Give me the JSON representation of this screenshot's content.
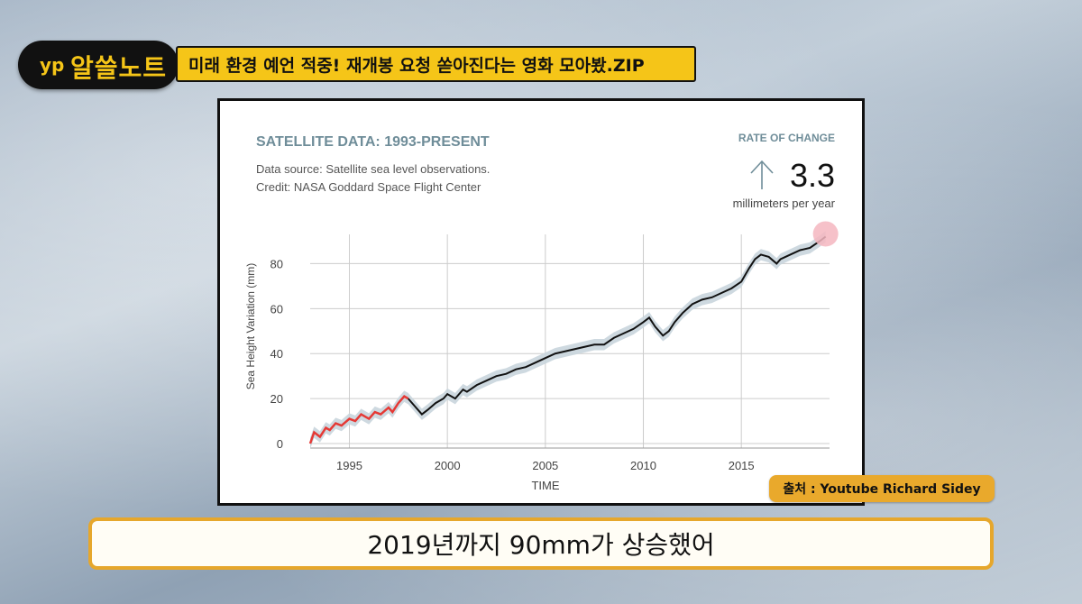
{
  "overlay": {
    "logo_badge": "yp",
    "logo_text": "알쓸노트",
    "headline": "미래 환경 예언 적중! 재개봉 요청 쏟아진다는 영화 모아봤.ZIP",
    "source_tag": "출처 : Youtube Richard Sidey",
    "subtitle": "2019년까지 90mm가 상승했어"
  },
  "chart_header": {
    "title": "SATELLITE DATA: 1993-PRESENT",
    "source_line1": "Data source: Satellite sea level observations.",
    "source_line2": "Credit: NASA Goddard Space Flight Center",
    "rate_label": "RATE OF CHANGE",
    "rate_value": "3.3",
    "rate_unit": "millimeters per year"
  },
  "colors": {
    "title": "#6f8d99",
    "line": "#111111",
    "early_line": "#e53935",
    "band": "#c9d5dd",
    "grid": "#cccccc",
    "marker": "#f4b6bf",
    "accent_yellow": "#f5c518",
    "accent_orange": "#e6a72c"
  },
  "chart_data": {
    "type": "line",
    "title": "SATELLITE DATA: 1993-PRESENT",
    "xlabel": "TIME",
    "ylabel": "Sea Height Variation (mm)",
    "xlim": [
      1993,
      2019.5
    ],
    "ylim": [
      -2,
      93
    ],
    "xticks": [
      1995,
      2000,
      2005,
      2010,
      2015
    ],
    "yticks": [
      0,
      20,
      40,
      60,
      80
    ],
    "grid": true,
    "highlight_until": 1998,
    "series": [
      {
        "points": [
          [
            1993.0,
            0
          ],
          [
            1993.2,
            5
          ],
          [
            1993.5,
            3
          ],
          [
            1993.8,
            7
          ],
          [
            1994.0,
            6
          ],
          [
            1994.3,
            9
          ],
          [
            1994.6,
            8
          ],
          [
            1995.0,
            11
          ],
          [
            1995.3,
            10
          ],
          [
            1995.6,
            13
          ],
          [
            1996.0,
            11
          ],
          [
            1996.3,
            14
          ],
          [
            1996.6,
            13
          ],
          [
            1997.0,
            16
          ],
          [
            1997.2,
            14
          ],
          [
            1997.5,
            18
          ],
          [
            1997.8,
            21
          ],
          [
            1998.0,
            20
          ],
          [
            1998.3,
            17
          ],
          [
            1998.7,
            13
          ],
          [
            1999.0,
            15
          ],
          [
            1999.4,
            18
          ],
          [
            1999.8,
            20
          ],
          [
            2000.0,
            22
          ],
          [
            2000.4,
            20
          ],
          [
            2000.8,
            24
          ],
          [
            2001.0,
            23
          ],
          [
            2001.5,
            26
          ],
          [
            2002.0,
            28
          ],
          [
            2002.5,
            30
          ],
          [
            2003.0,
            31
          ],
          [
            2003.5,
            33
          ],
          [
            2004.0,
            34
          ],
          [
            2004.5,
            36
          ],
          [
            2005.0,
            38
          ],
          [
            2005.5,
            40
          ],
          [
            2006.0,
            41
          ],
          [
            2006.5,
            42
          ],
          [
            2007.0,
            43
          ],
          [
            2007.5,
            44
          ],
          [
            2008.0,
            44
          ],
          [
            2008.5,
            47
          ],
          [
            2009.0,
            49
          ],
          [
            2009.5,
            51
          ],
          [
            2010.0,
            54
          ],
          [
            2010.3,
            56
          ],
          [
            2010.6,
            52
          ],
          [
            2011.0,
            48
          ],
          [
            2011.3,
            50
          ],
          [
            2011.6,
            54
          ],
          [
            2012.0,
            58
          ],
          [
            2012.5,
            62
          ],
          [
            2013.0,
            64
          ],
          [
            2013.5,
            65
          ],
          [
            2014.0,
            67
          ],
          [
            2014.5,
            69
          ],
          [
            2015.0,
            72
          ],
          [
            2015.4,
            78
          ],
          [
            2015.7,
            82
          ],
          [
            2016.0,
            84
          ],
          [
            2016.4,
            83
          ],
          [
            2016.8,
            80
          ],
          [
            2017.0,
            82
          ],
          [
            2017.5,
            84
          ],
          [
            2018.0,
            86
          ],
          [
            2018.5,
            87
          ],
          [
            2019.0,
            90
          ],
          [
            2019.3,
            92
          ]
        ],
        "values_note_unused": ""
      }
    ]
  }
}
